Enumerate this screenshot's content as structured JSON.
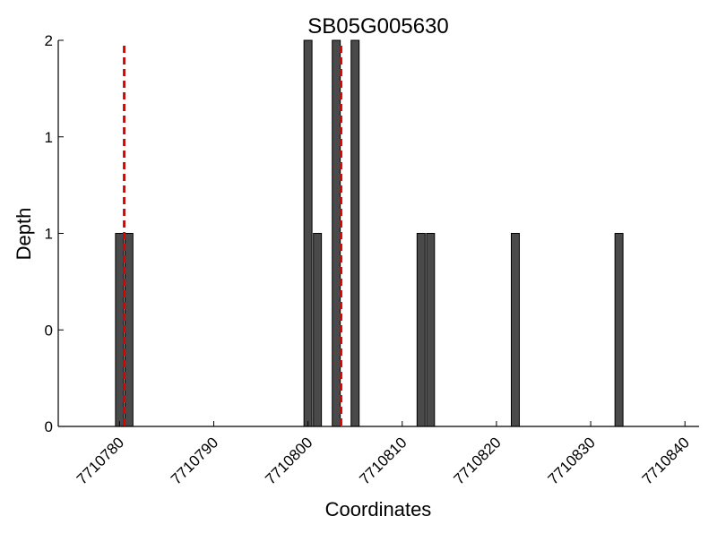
{
  "chart_data": {
    "type": "bar",
    "title": "SB05G005630",
    "xlabel": "Coordinates",
    "ylabel": "Depth",
    "bar_color": "#4a4a4a",
    "bar_edge_color": "#000000",
    "marker_color": "#e00000",
    "xlim": [
      7710773.5,
      7710841.5
    ],
    "ylim": [
      0,
      2
    ],
    "x_ticks": [
      7710780,
      7710790,
      7710800,
      7710810,
      7710820,
      7710830,
      7710840
    ],
    "x_tick_labels": [
      "7710780",
      "7710790",
      "7710800",
      "7710810",
      "7710820",
      "7710830",
      "7710840"
    ],
    "y_ticks": [
      0,
      0.5,
      1,
      1.5,
      2
    ],
    "y_tick_labels": [
      "0",
      "0",
      "1",
      "1",
      "2"
    ],
    "x": [
      7710780,
      7710781,
      7710800,
      7710801,
      7710803,
      7710805,
      7710812,
      7710813,
      7710822,
      7710833
    ],
    "values": [
      1,
      1,
      2,
      1,
      2,
      2,
      1,
      1,
      1,
      1
    ],
    "marker_lines": [
      7710780.5,
      7710803.5
    ],
    "grid": false,
    "legend": false
  }
}
